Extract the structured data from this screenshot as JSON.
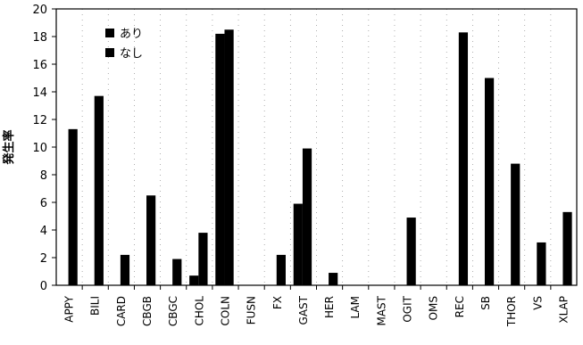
{
  "chart_data": {
    "type": "bar",
    "ylabel": "発生率",
    "ylim": [
      0,
      20
    ],
    "yticks": [
      0,
      2,
      4,
      6,
      8,
      10,
      12,
      14,
      16,
      18,
      20
    ],
    "grid": "dotted vertical separators between categories",
    "legend_position": "top-left",
    "categories": [
      "APPY",
      "BILI",
      "CARD",
      "CBGB",
      "CBGC",
      "CHOL",
      "COLN",
      "FUSN",
      "FX",
      "GAST",
      "HER",
      "LAM",
      "MAST",
      "OGIT",
      "OMS",
      "REC",
      "SB",
      "THOR",
      "VS",
      "XLAP"
    ],
    "series": [
      {
        "name": "あり",
        "color": "#000000",
        "values": [
          0,
          0,
          0,
          0,
          0,
          0.7,
          18.2,
          0,
          0,
          5.9,
          0,
          0,
          0,
          0,
          0,
          0,
          0,
          0,
          0,
          0
        ]
      },
      {
        "name": "なし",
        "color": "#000000",
        "values": [
          11.3,
          13.7,
          2.2,
          6.5,
          1.9,
          3.8,
          18.5,
          0,
          2.2,
          9.9,
          0.9,
          0,
          0,
          4.9,
          0,
          18.3,
          15.0,
          8.8,
          3.1,
          5.3
        ]
      }
    ]
  }
}
